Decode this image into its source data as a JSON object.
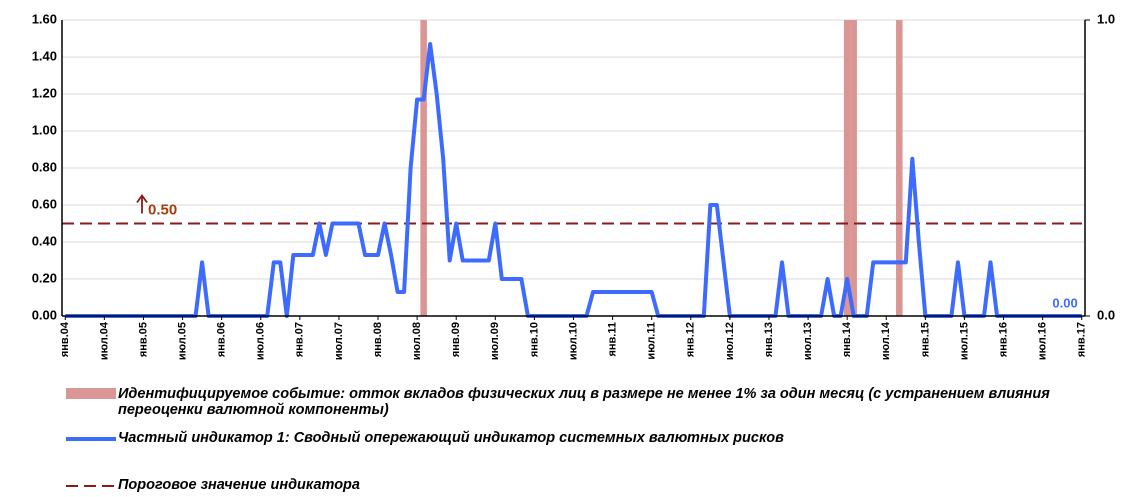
{
  "chart_data": {
    "type": "line",
    "categories": [
      "янв.04",
      null,
      null,
      null,
      null,
      null,
      "июл.04",
      null,
      null,
      null,
      null,
      null,
      "янв.05",
      null,
      null,
      null,
      null,
      null,
      "июл.05",
      null,
      null,
      null,
      null,
      null,
      "янв.06",
      null,
      null,
      null,
      null,
      null,
      "июл.06",
      null,
      null,
      null,
      null,
      null,
      "янв.07",
      null,
      null,
      null,
      null,
      null,
      "июл.07",
      null,
      null,
      null,
      null,
      null,
      "янв.08",
      null,
      null,
      null,
      null,
      null,
      "июл.08",
      null,
      null,
      null,
      null,
      null,
      "янв.09",
      null,
      null,
      null,
      null,
      null,
      "июл.09",
      null,
      null,
      null,
      null,
      null,
      "янв.10",
      null,
      null,
      null,
      null,
      null,
      "июл.10",
      null,
      null,
      null,
      null,
      null,
      "янв.11",
      null,
      null,
      null,
      null,
      null,
      "июл.11",
      null,
      null,
      null,
      null,
      null,
      "янв.12",
      null,
      null,
      null,
      null,
      null,
      "июл.12",
      null,
      null,
      null,
      null,
      null,
      "янв.13",
      null,
      null,
      null,
      null,
      null,
      "июл.13",
      null,
      null,
      null,
      null,
      null,
      "янв.14",
      null,
      null,
      null,
      null,
      null,
      "июл.14",
      null,
      null,
      null,
      null,
      null,
      "янв.15",
      null,
      null,
      null,
      null,
      null,
      "июл.15",
      null,
      null,
      null,
      null,
      null,
      "янв.16",
      null,
      null,
      null,
      null,
      null,
      "июл.16",
      null,
      null,
      null,
      null,
      null,
      "янв.17"
    ],
    "series": [
      {
        "name": "Идентифицируемое событие: отток вкладов физических лиц в размере не менее 1% за один месяц (с устранением влияния переоценки валютной компоненты)",
        "type": "bar",
        "axis": "y2",
        "color": "#d99694",
        "values": [
          0,
          0,
          0,
          0,
          0,
          0,
          0,
          0,
          0,
          0,
          0,
          0,
          0,
          0,
          0,
          0,
          0,
          0,
          0,
          0,
          0,
          0,
          0,
          0,
          0,
          0,
          0,
          0,
          0,
          0,
          0,
          0,
          0,
          0,
          0,
          0,
          0,
          0,
          0,
          0,
          0,
          0,
          0,
          0,
          0,
          0,
          0,
          0,
          0,
          0,
          0,
          0,
          0,
          0,
          0,
          1,
          0,
          0,
          0,
          0,
          0,
          0,
          0,
          0,
          0,
          0,
          0,
          0,
          0,
          0,
          0,
          0,
          0,
          0,
          0,
          0,
          0,
          0,
          0,
          0,
          0,
          0,
          0,
          0,
          0,
          0,
          0,
          0,
          0,
          0,
          0,
          0,
          0,
          0,
          0,
          0,
          0,
          0,
          0,
          0,
          0,
          0,
          0,
          0,
          0,
          0,
          0,
          0,
          0,
          0,
          0,
          0,
          0,
          0,
          0,
          0,
          0,
          0,
          0,
          0,
          1,
          1,
          0,
          0,
          0,
          0,
          0,
          0,
          1,
          0,
          0,
          0,
          0,
          0,
          0,
          0,
          0,
          0,
          0,
          0,
          0,
          0,
          0,
          0,
          0,
          0,
          0,
          0,
          0,
          0,
          0,
          0,
          0,
          0,
          0,
          0,
          0
        ]
      },
      {
        "name": "Частный индикатор 1: Сводный опережающий индикатор системных валютных рисков",
        "type": "line",
        "color": "#3d6bff",
        "end_label": "0.00",
        "values": [
          0,
          0,
          0,
          0,
          0,
          0,
          0,
          0,
          0,
          0,
          0,
          0,
          0,
          0,
          0,
          0,
          0,
          0,
          0,
          0,
          0,
          0.29,
          0,
          0,
          0,
          0,
          0,
          0,
          0,
          0,
          0,
          0,
          0.29,
          0.29,
          0,
          0.33,
          0.33,
          0.33,
          0.33,
          0.5,
          0.33,
          0.5,
          0.5,
          0.5,
          0.5,
          0.5,
          0.33,
          0.33,
          0.33,
          0.5,
          0.33,
          0.13,
          0.13,
          0.8,
          1.17,
          1.17,
          1.47,
          1.2,
          0.85,
          0.3,
          0.5,
          0.3,
          0.3,
          0.3,
          0.3,
          0.3,
          0.5,
          0.2,
          0.2,
          0.2,
          0.2,
          0,
          0,
          0,
          0,
          0,
          0,
          0,
          0,
          0,
          0,
          0.13,
          0.13,
          0.13,
          0.13,
          0.13,
          0.13,
          0.13,
          0.13,
          0.13,
          0.13,
          0,
          0,
          0,
          0,
          0,
          0,
          0,
          0,
          0.6,
          0.6,
          0.3,
          0,
          0,
          0,
          0,
          0,
          0,
          0,
          0,
          0.29,
          0,
          0,
          0,
          0,
          0,
          0,
          0.2,
          0,
          0,
          0.2,
          0,
          0,
          0,
          0.29,
          0.29,
          0.29,
          0.29,
          0.29,
          0.29,
          0.85,
          0.4,
          0,
          0,
          0,
          0,
          0,
          0.29,
          0,
          0,
          0,
          0,
          0.29,
          0,
          0,
          0,
          0,
          0,
          0,
          0,
          0,
          0,
          0,
          0,
          0,
          0,
          0
        ]
      }
    ],
    "threshold": {
      "name": "Пороговое значение индикатора",
      "color": "#8b1a1a",
      "value": 0.5,
      "label": "0.50"
    },
    "ylim": [
      0,
      1.6
    ],
    "yticks": [
      {
        "value": 0,
        "label": "0.00"
      },
      {
        "value": 0.2,
        "label": "0.20"
      },
      {
        "value": 0.4,
        "label": "0.40"
      },
      {
        "value": 0.6,
        "label": "0.60"
      },
      {
        "value": 0.8,
        "label": "0.80"
      },
      {
        "value": 1,
        "label": "1.00"
      },
      {
        "value": 1.2,
        "label": "1.20"
      },
      {
        "value": 1.4,
        "label": "1.40"
      },
      {
        "value": 1.6,
        "label": "1.60"
      }
    ],
    "y2lim": [
      0,
      1
    ],
    "y2ticks": [
      {
        "value": 0,
        "label": "0.0"
      },
      {
        "value": 1,
        "label": "1.0"
      }
    ],
    "grid": true
  }
}
